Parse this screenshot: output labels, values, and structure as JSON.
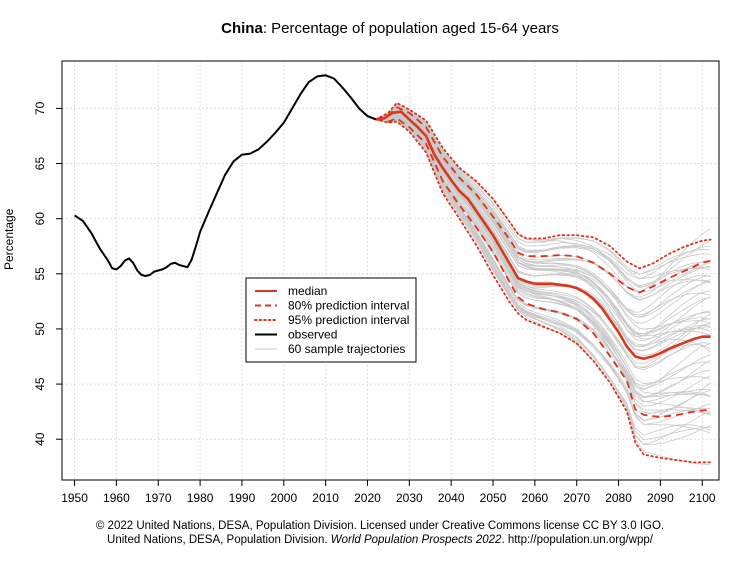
{
  "chart_data": {
    "type": "line",
    "title_bold": "China",
    "title_rest": ": Percentage of population aged 15-64 years",
    "xlabel": "",
    "ylabel": "Percentage",
    "xlim": [
      1947,
      2104
    ],
    "ylim": [
      36.3,
      74.3
    ],
    "x_ticks": [
      1950,
      1960,
      1970,
      1980,
      1990,
      2000,
      2010,
      2020,
      2030,
      2040,
      2050,
      2060,
      2070,
      2080,
      2090,
      2100
    ],
    "y_ticks": [
      40,
      45,
      50,
      55,
      60,
      65,
      70
    ],
    "grid": true,
    "legend_position": "center-left",
    "legend": [
      {
        "label": "median",
        "style": "solid",
        "color": "#d9381e"
      },
      {
        "label": "80% prediction interval",
        "style": "dashed",
        "color": "#d9381e"
      },
      {
        "label": "95% prediction interval",
        "style": "dotted",
        "color": "#d9381e"
      },
      {
        "label": "observed",
        "style": "solid",
        "color": "#000000"
      },
      {
        "label": "60 sample trajectories",
        "style": "solid",
        "color": "#c8c8c8"
      }
    ],
    "series": [
      {
        "name": "observed",
        "points": [
          [
            1950,
            60.3
          ],
          [
            1952,
            59.8
          ],
          [
            1954,
            58.7
          ],
          [
            1956,
            57.3
          ],
          [
            1958,
            56.2
          ],
          [
            1959,
            55.5
          ],
          [
            1960,
            55.4
          ],
          [
            1961,
            55.7
          ],
          [
            1962,
            56.2
          ],
          [
            1963,
            56.4
          ],
          [
            1964,
            56.0
          ],
          [
            1965,
            55.3
          ],
          [
            1966,
            54.9
          ],
          [
            1967,
            54.8
          ],
          [
            1968,
            54.9
          ],
          [
            1969,
            55.2
          ],
          [
            1970,
            55.3
          ],
          [
            1971,
            55.4
          ],
          [
            1972,
            55.6
          ],
          [
            1973,
            55.9
          ],
          [
            1974,
            56.0
          ],
          [
            1975,
            55.8
          ],
          [
            1976,
            55.7
          ],
          [
            1977,
            55.6
          ],
          [
            1978,
            56.3
          ],
          [
            1979,
            57.5
          ],
          [
            1980,
            58.8
          ],
          [
            1982,
            60.6
          ],
          [
            1984,
            62.3
          ],
          [
            1986,
            64.0
          ],
          [
            1988,
            65.2
          ],
          [
            1990,
            65.8
          ],
          [
            1992,
            65.9
          ],
          [
            1994,
            66.3
          ],
          [
            1996,
            67.0
          ],
          [
            1998,
            67.8
          ],
          [
            2000,
            68.7
          ],
          [
            2002,
            70.0
          ],
          [
            2004,
            71.3
          ],
          [
            2006,
            72.4
          ],
          [
            2008,
            72.9
          ],
          [
            2010,
            73.0
          ],
          [
            2012,
            72.7
          ],
          [
            2014,
            71.9
          ],
          [
            2016,
            71.0
          ],
          [
            2018,
            70.0
          ],
          [
            2020,
            69.3
          ],
          [
            2022,
            69.0
          ]
        ]
      },
      {
        "name": "median",
        "points": [
          [
            2022,
            69.0
          ],
          [
            2024,
            69.1
          ],
          [
            2026,
            69.6
          ],
          [
            2028,
            69.7
          ],
          [
            2030,
            69.0
          ],
          [
            2032,
            68.3
          ],
          [
            2034,
            67.5
          ],
          [
            2036,
            65.8
          ],
          [
            2038,
            64.6
          ],
          [
            2040,
            63.5
          ],
          [
            2042,
            62.5
          ],
          [
            2044,
            61.8
          ],
          [
            2046,
            60.7
          ],
          [
            2048,
            59.6
          ],
          [
            2050,
            58.5
          ],
          [
            2052,
            57.2
          ],
          [
            2054,
            55.9
          ],
          [
            2056,
            54.6
          ],
          [
            2058,
            54.3
          ],
          [
            2060,
            54.1
          ],
          [
            2062,
            54.1
          ],
          [
            2064,
            54.1
          ],
          [
            2066,
            54.0
          ],
          [
            2068,
            53.9
          ],
          [
            2070,
            53.7
          ],
          [
            2072,
            53.3
          ],
          [
            2074,
            52.7
          ],
          [
            2076,
            51.9
          ],
          [
            2078,
            50.8
          ],
          [
            2080,
            49.7
          ],
          [
            2082,
            48.4
          ],
          [
            2084,
            47.5
          ],
          [
            2086,
            47.3
          ],
          [
            2088,
            47.5
          ],
          [
            2090,
            47.8
          ],
          [
            2092,
            48.2
          ],
          [
            2094,
            48.5
          ],
          [
            2096,
            48.8
          ],
          [
            2098,
            49.1
          ],
          [
            2100,
            49.3
          ],
          [
            2102,
            49.3
          ]
        ]
      },
      {
        "name": "80% prediction interval upper",
        "points": [
          [
            2022,
            69.0
          ],
          [
            2025,
            69.4
          ],
          [
            2027,
            70.1
          ],
          [
            2030,
            69.6
          ],
          [
            2034,
            68.3
          ],
          [
            2038,
            65.6
          ],
          [
            2042,
            63.7
          ],
          [
            2046,
            62.2
          ],
          [
            2050,
            60.2
          ],
          [
            2054,
            58.1
          ],
          [
            2056,
            56.9
          ],
          [
            2058,
            56.6
          ],
          [
            2062,
            56.6
          ],
          [
            2066,
            56.7
          ],
          [
            2070,
            56.6
          ],
          [
            2074,
            56.0
          ],
          [
            2078,
            55.0
          ],
          [
            2082,
            53.8
          ],
          [
            2085,
            53.3
          ],
          [
            2088,
            53.8
          ],
          [
            2092,
            54.6
          ],
          [
            2096,
            55.3
          ],
          [
            2100,
            56.0
          ],
          [
            2102,
            56.2
          ]
        ]
      },
      {
        "name": "80% prediction interval lower",
        "points": [
          [
            2022,
            69.0
          ],
          [
            2025,
            68.8
          ],
          [
            2027,
            69.1
          ],
          [
            2030,
            68.3
          ],
          [
            2034,
            66.8
          ],
          [
            2038,
            63.4
          ],
          [
            2042,
            61.2
          ],
          [
            2046,
            59.2
          ],
          [
            2050,
            57.0
          ],
          [
            2054,
            54.2
          ],
          [
            2056,
            52.9
          ],
          [
            2058,
            52.3
          ],
          [
            2062,
            51.8
          ],
          [
            2066,
            51.5
          ],
          [
            2070,
            50.9
          ],
          [
            2074,
            49.6
          ],
          [
            2078,
            47.5
          ],
          [
            2082,
            45.3
          ],
          [
            2084,
            42.7
          ],
          [
            2086,
            42.2
          ],
          [
            2090,
            42.0
          ],
          [
            2094,
            42.2
          ],
          [
            2098,
            42.5
          ],
          [
            2102,
            42.7
          ]
        ]
      },
      {
        "name": "95% prediction interval upper",
        "points": [
          [
            2022,
            69.0
          ],
          [
            2025,
            69.6
          ],
          [
            2027,
            70.5
          ],
          [
            2030,
            69.9
          ],
          [
            2034,
            68.9
          ],
          [
            2038,
            66.4
          ],
          [
            2042,
            64.6
          ],
          [
            2046,
            63.4
          ],
          [
            2050,
            61.8
          ],
          [
            2054,
            59.7
          ],
          [
            2056,
            58.6
          ],
          [
            2058,
            58.2
          ],
          [
            2062,
            58.2
          ],
          [
            2066,
            58.5
          ],
          [
            2070,
            58.5
          ],
          [
            2074,
            58.3
          ],
          [
            2078,
            57.5
          ],
          [
            2082,
            56.1
          ],
          [
            2085,
            55.5
          ],
          [
            2088,
            55.9
          ],
          [
            2092,
            56.8
          ],
          [
            2096,
            57.5
          ],
          [
            2100,
            58.0
          ],
          [
            2102,
            58.1
          ]
        ]
      },
      {
        "name": "95% prediction interval lower",
        "points": [
          [
            2022,
            69.0
          ],
          [
            2025,
            68.7
          ],
          [
            2027,
            68.8
          ],
          [
            2030,
            67.9
          ],
          [
            2034,
            66.0
          ],
          [
            2038,
            62.3
          ],
          [
            2042,
            60.0
          ],
          [
            2046,
            57.6
          ],
          [
            2050,
            54.9
          ],
          [
            2054,
            52.4
          ],
          [
            2056,
            51.4
          ],
          [
            2058,
            50.8
          ],
          [
            2062,
            50.2
          ],
          [
            2066,
            49.6
          ],
          [
            2070,
            48.7
          ],
          [
            2074,
            47.1
          ],
          [
            2078,
            45.1
          ],
          [
            2082,
            42.5
          ],
          [
            2084,
            39.7
          ],
          [
            2086,
            38.6
          ],
          [
            2090,
            38.3
          ],
          [
            2094,
            38.1
          ],
          [
            2098,
            37.9
          ],
          [
            2102,
            37.9
          ]
        ]
      }
    ]
  },
  "credit_line1": "© 2022 United Nations, DESA, Population Division. Licensed under Creative Commons license CC BY 3.0 IGO.",
  "credit_line2_a": "United Nations, DESA, Population Division. ",
  "credit_line2_b": "World Population Prospects 2022",
  "credit_line2_c": ". http://population.un.org/wpp/"
}
